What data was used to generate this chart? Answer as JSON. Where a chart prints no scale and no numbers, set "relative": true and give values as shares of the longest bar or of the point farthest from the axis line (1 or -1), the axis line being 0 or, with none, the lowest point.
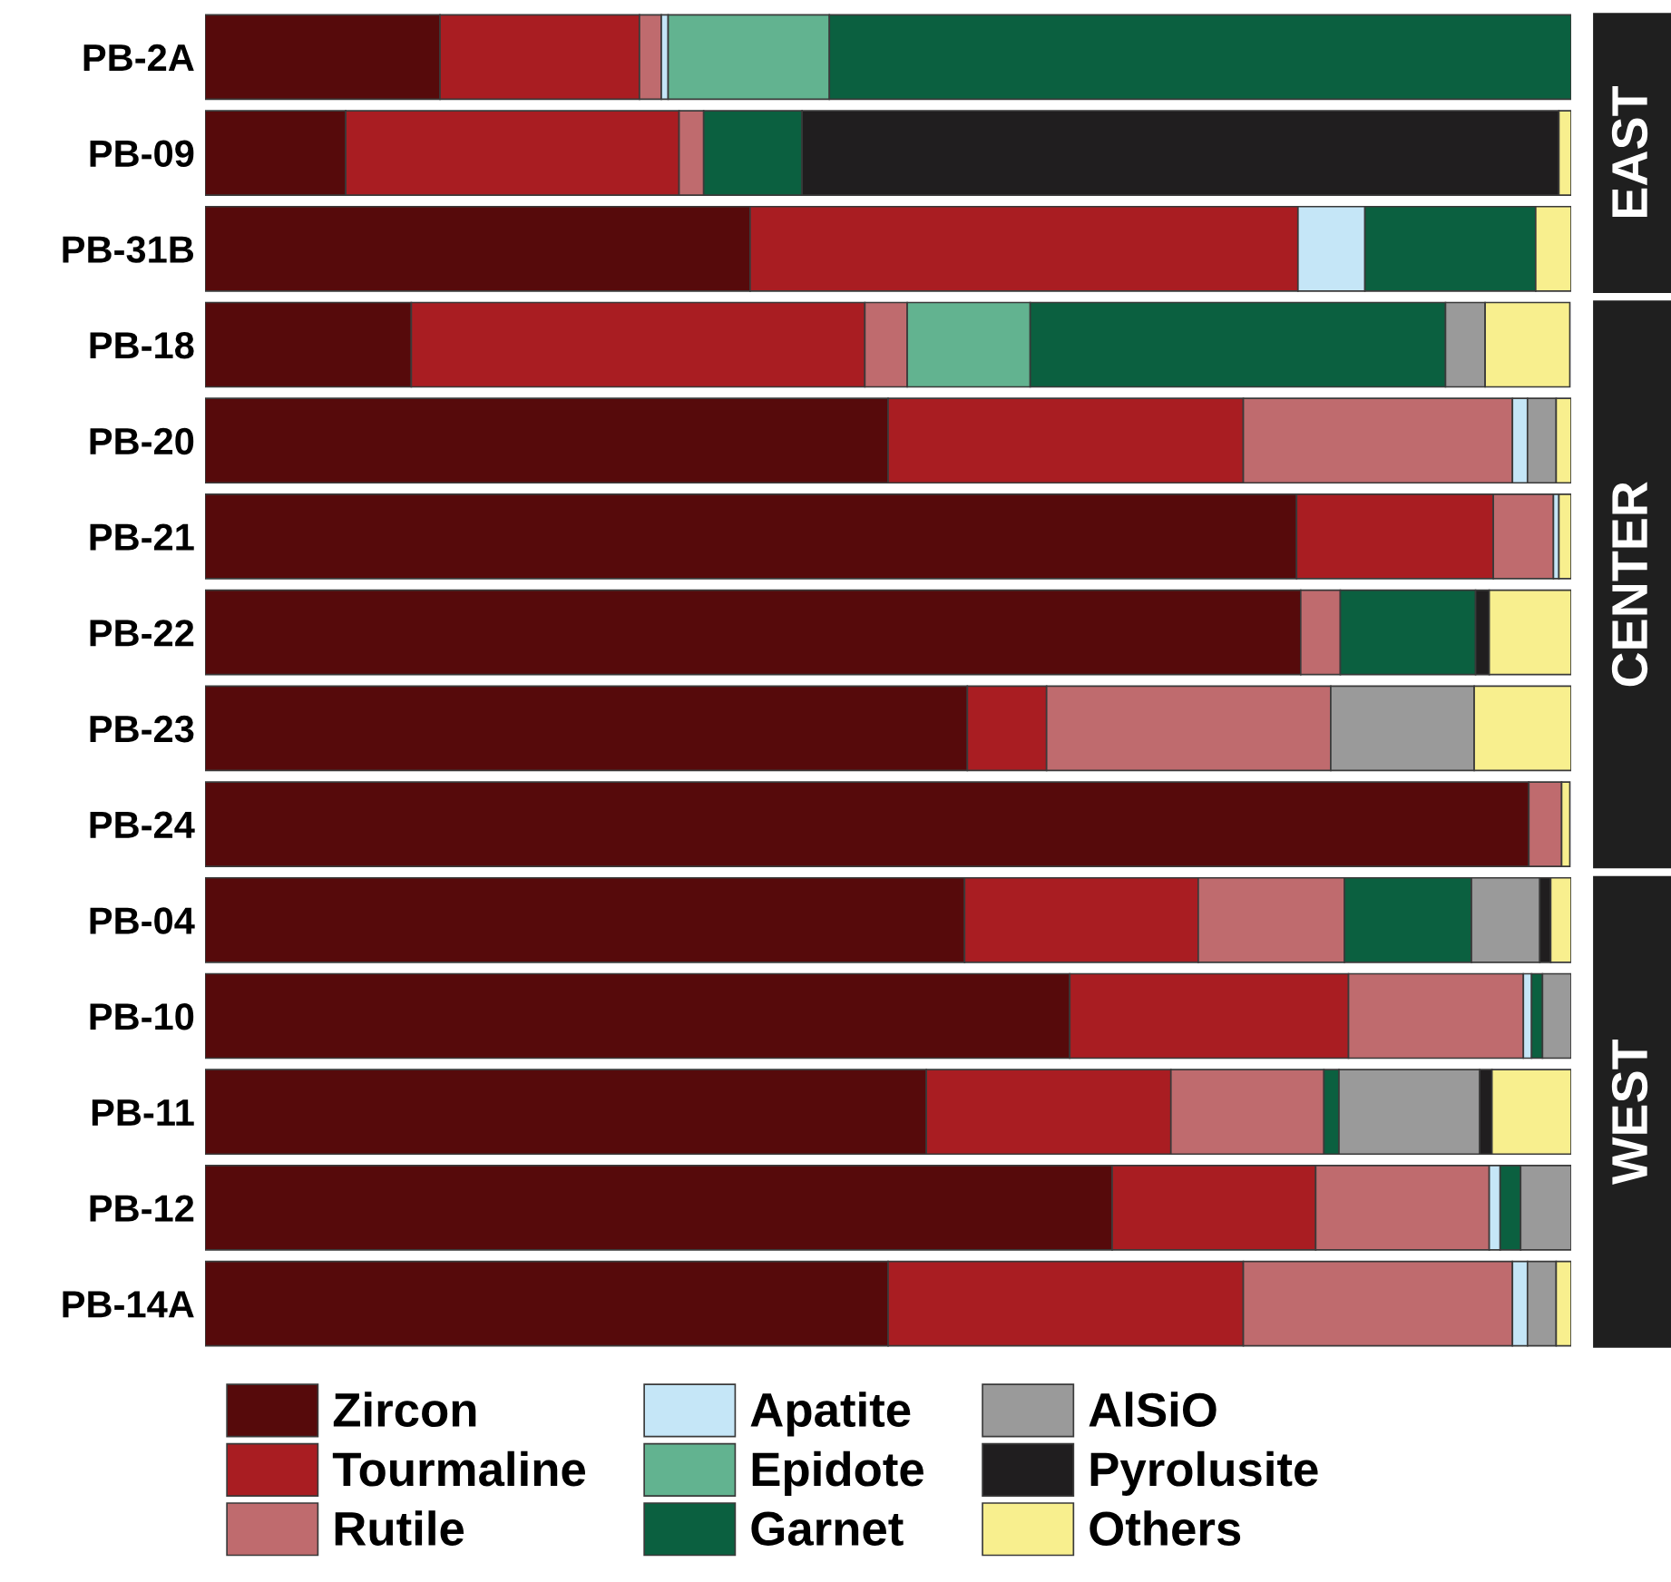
{
  "chart_data": {
    "type": "bar",
    "orientation": "horizontal",
    "stacked": true,
    "relative": true,
    "legend": "bottom",
    "categories": [
      "PB-2A",
      "PB-09",
      "PB-31B",
      "PB-18",
      "PB-20",
      "PB-21",
      "PB-22",
      "PB-23",
      "PB-24",
      "PB-04",
      "PB-10",
      "PB-11",
      "PB-12",
      "PB-14A"
    ],
    "series": [
      {
        "name": "Zircon",
        "color": "#560a0b",
        "values": [
          0.172,
          0.103,
          0.399,
          0.151,
          0.5,
          0.799,
          0.802,
          0.558,
          0.969,
          0.556,
          0.633,
          0.528,
          0.664,
          0.5
        ]
      },
      {
        "name": "Tourmaline",
        "color": "#a91d22",
        "values": [
          0.146,
          0.244,
          0.401,
          0.332,
          0.26,
          0.144,
          null,
          0.058,
          null,
          0.171,
          0.204,
          0.179,
          0.149,
          0.26
        ]
      },
      {
        "name": "Rutile",
        "color": "#bf6b6e",
        "values": [
          0.016,
          0.018,
          null,
          0.031,
          0.197,
          0.044,
          0.029,
          0.208,
          0.024,
          0.107,
          0.128,
          0.112,
          0.127,
          0.197
        ]
      },
      {
        "name": "Apatite",
        "color": "#c5e6f7",
        "values": [
          0.005,
          null,
          0.049,
          null,
          0.011,
          0.004,
          null,
          null,
          null,
          null,
          0.006,
          null,
          0.008,
          0.011
        ]
      },
      {
        "name": "Epidote",
        "color": "#62b390",
        "values": [
          0.118,
          null,
          null,
          0.09,
          null,
          null,
          null,
          null,
          null,
          null,
          null,
          null,
          null,
          null
        ]
      },
      {
        "name": "Garnet",
        "color": "#0b6040",
        "values": [
          0.543,
          0.072,
          0.125,
          0.304,
          null,
          null,
          0.099,
          null,
          null,
          0.093,
          0.008,
          0.011,
          0.015,
          null
        ]
      },
      {
        "name": "AlSiO",
        "color": "#9a9a9a",
        "values": [
          null,
          null,
          null,
          0.029,
          0.021,
          null,
          null,
          0.105,
          null,
          0.05,
          0.021,
          0.103,
          0.037,
          0.021
        ]
      },
      {
        "name": "Pyrolusite",
        "color": "#201e1f",
        "values": [
          null,
          0.554,
          null,
          null,
          null,
          null,
          0.01,
          null,
          null,
          0.008,
          null,
          0.009,
          null,
          null
        ]
      },
      {
        "name": "Others",
        "color": "#f8ef8e",
        "values": [
          null,
          0.009,
          0.026,
          0.062,
          0.011,
          0.009,
          0.06,
          0.071,
          0.006,
          0.015,
          null,
          0.058,
          null,
          0.011
        ]
      }
    ],
    "annotations": [
      "EAST",
      "CENTER",
      "WEST"
    ]
  }
}
